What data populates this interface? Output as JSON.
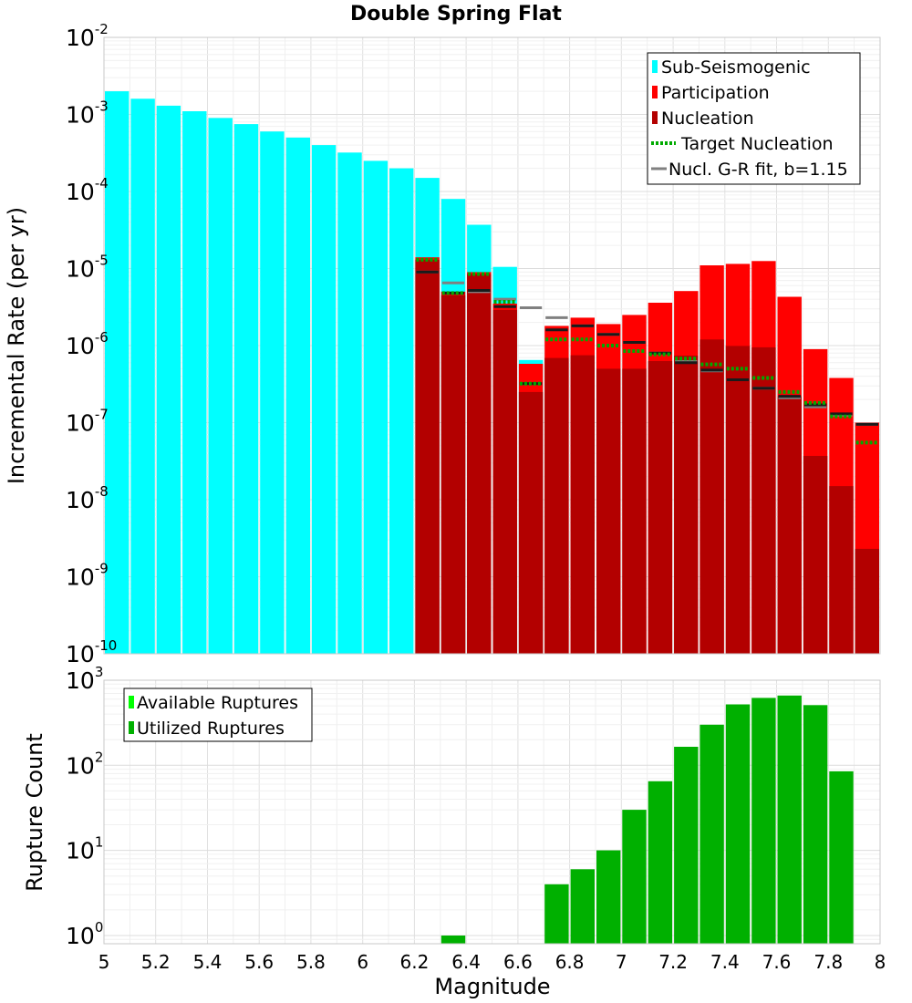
{
  "chart_data": [
    {
      "type": "bar",
      "title": "Double Spring Flat",
      "xlabel": "",
      "ylabel": "Incremental Rate (per yr)",
      "y_scale": "log",
      "ylim": [
        1e-10,
        0.01
      ],
      "xlim": [
        5.0,
        8.0
      ],
      "bar_width": 0.1,
      "grid": true,
      "legend_position": "top-right",
      "colors": {
        "sub_seismogenic": "#00ffff",
        "participation": "#ff0000",
        "nucleation": "#b30000",
        "target": "#00aa00",
        "gr_fit": "#808080"
      },
      "legend": [
        {
          "label": "Sub-Seismogenic",
          "color": "#00ffff",
          "style": "box"
        },
        {
          "label": "Participation",
          "color": "#ff0000",
          "style": "box"
        },
        {
          "label": "Nucleation",
          "color": "#b30000",
          "style": "box"
        },
        {
          "label": "Target Nucleation",
          "color": "#00aa00",
          "style": "dotted"
        },
        {
          "label": "Nucl. G-R fit, b=1.15",
          "color": "#808080",
          "style": "line"
        }
      ],
      "series": [
        {
          "name": "Sub-Seismogenic",
          "x": [
            5.05,
            5.15,
            5.25,
            5.35,
            5.45,
            5.55,
            5.65,
            5.75,
            5.85,
            5.95,
            6.05,
            6.15,
            6.25,
            6.35,
            6.45,
            6.55,
            6.65
          ],
          "values": [
            0.002,
            0.0016,
            0.0013,
            0.0011,
            0.0009,
            0.00075,
            0.0006,
            0.0005,
            0.0004,
            0.00032,
            0.00025,
            0.0002,
            0.00015,
            8e-05,
            3.7e-05,
            1.05e-05,
            6.5e-07
          ]
        },
        {
          "name": "Participation",
          "x": [
            6.25,
            6.35,
            6.45,
            6.55,
            6.65,
            6.75,
            6.85,
            6.95,
            7.05,
            7.15,
            7.25,
            7.35,
            7.45,
            7.55,
            7.65,
            7.75,
            7.85,
            7.95
          ],
          "values": [
            1.4e-05,
            5e-06,
            9e-06,
            3.5e-06,
            5.8e-07,
            1.8e-06,
            2.3e-06,
            1.9e-06,
            2.5e-06,
            3.6e-06,
            5.1e-06,
            1.1e-05,
            1.15e-05,
            1.25e-05,
            4.3e-06,
            9e-07,
            3.8e-07,
            1e-07
          ]
        },
        {
          "name": "Nucleation",
          "x": [
            6.25,
            6.35,
            6.45,
            6.55,
            6.65,
            6.75,
            6.85,
            6.95,
            7.05,
            7.15,
            7.25,
            7.35,
            7.45,
            7.55,
            7.65,
            7.75,
            7.85,
            7.95
          ],
          "values": [
            1.3e-05,
            4.5e-06,
            8.5e-06,
            2.9e-06,
            2.5e-07,
            6.9e-07,
            7.5e-07,
            5e-07,
            5e-07,
            6.3e-07,
            7.4e-07,
            1.2e-06,
            9.9e-07,
            9.5e-07,
            2.2e-07,
            3.7e-08,
            1.5e-08,
            2.3e-09
          ]
        },
        {
          "name": "Target Nucleation",
          "x": [
            6.25,
            6.35,
            6.45,
            6.55,
            6.65,
            6.75,
            6.85,
            6.95,
            7.05,
            7.15,
            7.25,
            7.35,
            7.45,
            7.55,
            7.65,
            7.75,
            7.85,
            7.95
          ],
          "values": [
            1.3e-05,
            4.8e-06,
            8.5e-06,
            3.7e-06,
            3.2e-07,
            1.2e-06,
            1.2e-06,
            1e-06,
            8.5e-07,
            7.7e-07,
            6.8e-07,
            5.7e-07,
            5e-07,
            3.8e-07,
            2.5e-07,
            1.8e-07,
            1.2e-07,
            5.5e-08
          ]
        },
        {
          "name": "Nucl. G-R fit, b=1.15",
          "x": [
            6.25,
            6.35,
            6.45,
            6.55,
            6.65,
            6.75,
            6.85,
            6.95,
            7.05,
            7.15,
            7.25,
            7.35,
            7.45,
            7.55,
            7.65,
            7.75,
            7.85,
            7.95
          ],
          "values": [
            9e-06,
            6.5e-06,
            5e-06,
            4e-06,
            3.1e-06,
            2.3e-06,
            1.8e-06,
            1.4e-06,
            1.1e-06,
            8e-07,
            6.2e-07,
            4.7e-07,
            3.6e-07,
            2.8e-07,
            2.1e-07,
            1.6e-07,
            1.25e-07,
            9.5e-08
          ]
        },
        {
          "name": "Nucleation marker",
          "x": [
            6.25,
            6.35,
            6.45,
            6.55,
            6.65,
            6.75,
            6.85,
            6.95,
            7.05,
            7.15,
            7.25,
            7.35,
            7.45,
            7.55,
            7.65,
            7.75,
            7.85,
            7.95
          ],
          "values": [
            9e-06,
            4.8e-06,
            5.2e-06,
            3.2e-06,
            3.2e-07,
            1.6e-06,
            1.8e-06,
            1.4e-06,
            1.1e-06,
            8e-07,
            6e-07,
            4.8e-07,
            3.6e-07,
            2.8e-07,
            2.2e-07,
            1.7e-07,
            1.3e-07,
            9.5e-08
          ]
        }
      ]
    },
    {
      "type": "bar",
      "title": "",
      "xlabel": "Magnitude",
      "ylabel": "Rupture Count",
      "y_scale": "log",
      "ylim": [
        0.8,
        1000
      ],
      "xlim": [
        5.0,
        8.0
      ],
      "bar_width": 0.1,
      "grid": true,
      "legend_position": "top-left",
      "x_ticks": [
        5,
        5.2,
        5.4,
        5.6,
        5.8,
        6,
        6.2,
        6.4,
        6.6,
        6.8,
        7,
        7.2,
        7.4,
        7.6,
        7.8,
        8
      ],
      "x_tick_labels": [
        "5",
        "5.2",
        "5.4",
        "5.6",
        "5.8",
        "6",
        "6.2",
        "6.4",
        "6.6",
        "6.8",
        "7",
        "7.2",
        "7.4",
        "7.6",
        "7.8",
        "8"
      ],
      "legend": [
        {
          "label": "Available Ruptures",
          "color": "#00ff00",
          "style": "box"
        },
        {
          "label": "Utilized Ruptures",
          "color": "#00b000",
          "style": "box"
        }
      ],
      "series": [
        {
          "name": "Utilized Ruptures",
          "color": "#00b000",
          "x": [
            6.35,
            6.75,
            6.85,
            6.95,
            7.05,
            7.15,
            7.25,
            7.35,
            7.45,
            7.55,
            7.65,
            7.75,
            7.85
          ],
          "values": [
            1,
            4,
            6,
            10,
            30,
            65,
            165,
            300,
            520,
            620,
            660,
            510,
            85
          ]
        }
      ]
    }
  ],
  "tick_labels": {
    "top_decades": [
      {
        "base": "10",
        "exp": "-2",
        "value": 0.01
      },
      {
        "base": "10",
        "exp": "-3",
        "value": 0.001
      },
      {
        "base": "10",
        "exp": "-4",
        "value": 0.0001
      },
      {
        "base": "10",
        "exp": "-5",
        "value": 1e-05
      },
      {
        "base": "10",
        "exp": "-6",
        "value": 1e-06
      },
      {
        "base": "10",
        "exp": "-7",
        "value": 1e-07
      },
      {
        "base": "10",
        "exp": "-8",
        "value": 1e-08
      },
      {
        "base": "10",
        "exp": "-9",
        "value": 1e-09
      },
      {
        "base": "10",
        "exp": "-10",
        "value": 1e-10
      }
    ],
    "bottom_decades": [
      {
        "base": "10",
        "exp": "3",
        "value": 1000
      },
      {
        "base": "10",
        "exp": "2",
        "value": 100
      },
      {
        "base": "10",
        "exp": "1",
        "value": 10
      },
      {
        "base": "10",
        "exp": "0",
        "value": 1
      }
    ]
  }
}
